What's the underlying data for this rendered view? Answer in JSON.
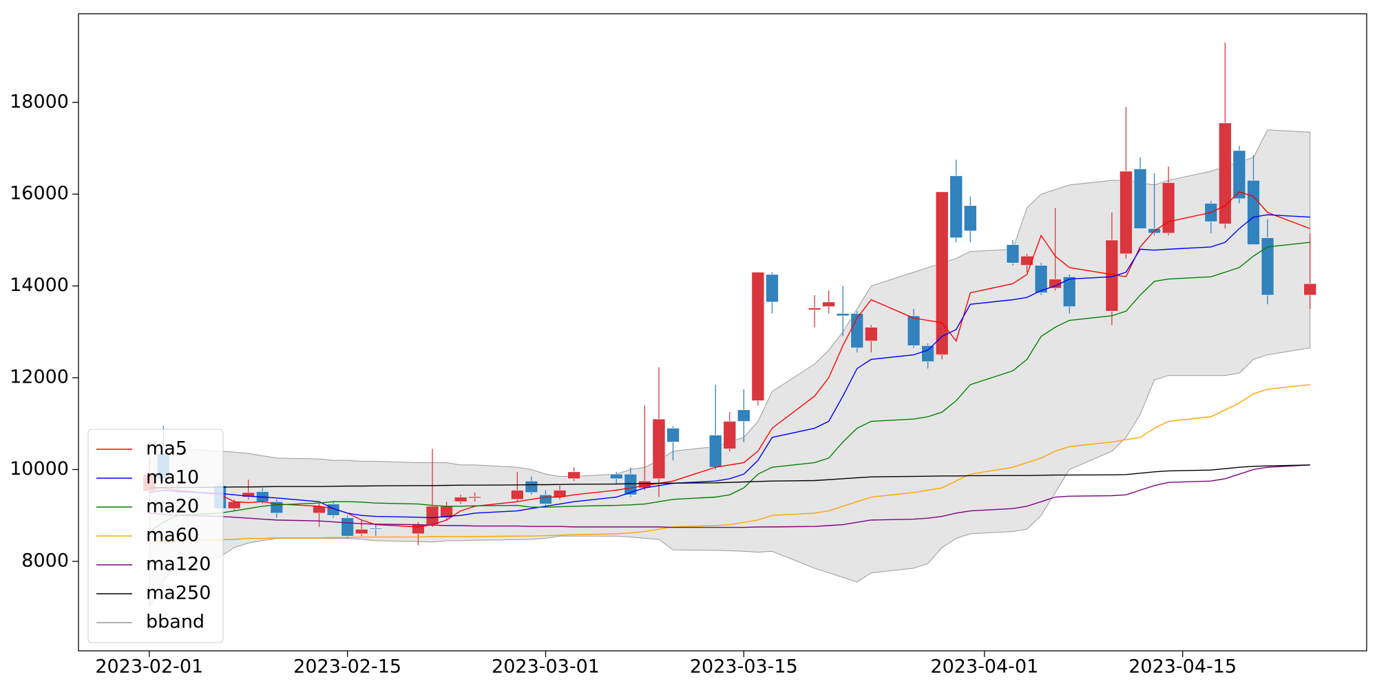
{
  "chart_data": {
    "type": "candlestick",
    "x": [
      "2023-02-01",
      "2023-02-02",
      "2023-02-03",
      "2023-02-06",
      "2023-02-07",
      "2023-02-08",
      "2023-02-09",
      "2023-02-10",
      "2023-02-13",
      "2023-02-14",
      "2023-02-15",
      "2023-02-16",
      "2023-02-17",
      "2023-02-20",
      "2023-02-21",
      "2023-02-22",
      "2023-02-23",
      "2023-02-24",
      "2023-02-27",
      "2023-02-28",
      "2023-03-01",
      "2023-03-02",
      "2023-03-03",
      "2023-03-06",
      "2023-03-07",
      "2023-03-08",
      "2023-03-09",
      "2023-03-10",
      "2023-03-13",
      "2023-03-14",
      "2023-03-15",
      "2023-03-16",
      "2023-03-17",
      "2023-03-20",
      "2023-03-21",
      "2023-03-22",
      "2023-03-23",
      "2023-03-24",
      "2023-03-27",
      "2023-03-28",
      "2023-03-29",
      "2023-03-30",
      "2023-03-31",
      "2023-04-03",
      "2023-04-04",
      "2023-04-05",
      "2023-04-06",
      "2023-04-07",
      "2023-04-10",
      "2023-04-11",
      "2023-04-12",
      "2023-04-13",
      "2023-04-14",
      "2023-04-17",
      "2023-04-18",
      "2023-04-19",
      "2023-04-20",
      "2023-04-21",
      "2023-04-24"
    ],
    "open": [
      9530,
      10350,
      9620,
      9650,
      9150,
      9400,
      9520,
      9300,
      9050,
      9250,
      8950,
      8600,
      8720,
      8600,
      8800,
      8950,
      9300,
      9380,
      9350,
      9750,
      9450,
      9400,
      9800,
      9900,
      9900,
      9600,
      9800,
      10900,
      10750,
      10450,
      11300,
      11500,
      14250,
      13480,
      13550,
      13400,
      13400,
      12800,
      13350,
      12700,
      12500,
      16400,
      15750,
      14900,
      14450,
      14450,
      13950,
      14200,
      13450,
      14700,
      16550,
      15250,
      15150,
      15800,
      15350,
      16950,
      16300,
      15050,
      13800
    ],
    "high": [
      10180,
      10950,
      9680,
      9700,
      9350,
      9780,
      9600,
      9350,
      9250,
      9300,
      9000,
      8900,
      8800,
      8850,
      10450,
      9300,
      9450,
      9500,
      9950,
      9850,
      9550,
      9650,
      10050,
      9950,
      10050,
      11400,
      12230,
      10950,
      11850,
      11250,
      11750,
      14300,
      14300,
      13800,
      13900,
      14000,
      13450,
      13150,
      13500,
      12750,
      16050,
      16750,
      15950,
      15000,
      14700,
      14500,
      15700,
      14250,
      15600,
      17900,
      16800,
      16450,
      16600,
      15850,
      19300,
      17050,
      16850,
      15450,
      15150
    ],
    "low": [
      9480,
      9700,
      9540,
      9100,
      9100,
      9350,
      9250,
      8950,
      8750,
      8950,
      8500,
      8550,
      8550,
      8350,
      8750,
      8900,
      9250,
      9300,
      9300,
      9450,
      9200,
      9350,
      9750,
      9700,
      9400,
      9550,
      9400,
      10200,
      10000,
      10400,
      10600,
      11400,
      13400,
      13100,
      13400,
      12900,
      12550,
      12550,
      12650,
      12200,
      12400,
      14950,
      14950,
      14450,
      14300,
      13800,
      13900,
      13400,
      13150,
      14600,
      15250,
      15100,
      15100,
      15150,
      15250,
      15800,
      14900,
      13600,
      13500
    ],
    "close": [
      9890,
      9800,
      9600,
      9150,
      9300,
      9500,
      9300,
      9050,
      9200,
      9000,
      8550,
      8700,
      8700,
      8800,
      9200,
      9200,
      9400,
      9410,
      9550,
      9500,
      9250,
      9550,
      9950,
      9800,
      9450,
      9750,
      11100,
      10600,
      10050,
      11050,
      11050,
      14300,
      13650,
      13520,
      13650,
      13350,
      12650,
      13100,
      12700,
      12350,
      16050,
      15050,
      15200,
      14500,
      14650,
      13850,
      14150,
      13550,
      15000,
      16500,
      15250,
      15150,
      16250,
      15400,
      17550,
      15900,
      14900,
      13800,
      14050
    ],
    "up_color": "#d9363e",
    "down_color": "#3182bd",
    "series": [
      {
        "name": "ma5",
        "color": "red",
        "values": [
          9580,
          9600,
          9550,
          9450,
          9300,
          9280,
          9300,
          9250,
          9200,
          9150,
          9050,
          8900,
          8800,
          8750,
          8800,
          8900,
          9100,
          9200,
          9300,
          9350,
          9400,
          9400,
          9450,
          9550,
          9600,
          9650,
          9700,
          9750,
          10050,
          10100,
          10150,
          10400,
          10900,
          11600,
          12000,
          12700,
          13300,
          13700,
          13300,
          13250,
          13200,
          12800,
          13850,
          14050,
          14250,
          15100,
          14650,
          14400,
          14250,
          14200,
          14850,
          15200,
          15400,
          15600,
          15750,
          16050,
          15950,
          15600,
          15250
        ]
      },
      {
        "name": "ma10",
        "color": "blue",
        "values": [
          9500,
          9550,
          9520,
          9480,
          9450,
          9420,
          9400,
          9380,
          9300,
          9150,
          9050,
          9000,
          8980,
          8960,
          8950,
          8980,
          9000,
          9050,
          9100,
          9150,
          9200,
          9250,
          9300,
          9400,
          9500,
          9600,
          9650,
          9700,
          9750,
          9800,
          9900,
          10200,
          10700,
          10900,
          11050,
          11600,
          12200,
          12400,
          12500,
          12600,
          12900,
          13050,
          13600,
          13700,
          13750,
          13900,
          14000,
          14150,
          14200,
          14300,
          14800,
          14780,
          14800,
          14850,
          14950,
          15250,
          15500,
          15550,
          15500
        ]
      },
      {
        "name": "ma20",
        "color": "green",
        "values": [
          8650,
          8850,
          9000,
          9050,
          9100,
          9150,
          9200,
          9230,
          9270,
          9300,
          9300,
          9290,
          9270,
          9250,
          9220,
          9200,
          9200,
          9210,
          9220,
          9180,
          9180,
          9190,
          9200,
          9220,
          9230,
          9250,
          9300,
          9350,
          9400,
          9450,
          9600,
          9900,
          10050,
          10150,
          10250,
          10600,
          10900,
          11050,
          11100,
          11150,
          11250,
          11500,
          11850,
          12150,
          12400,
          12900,
          13100,
          13250,
          13350,
          13450,
          13800,
          14100,
          14150,
          14200,
          14300,
          14400,
          14650,
          14850,
          14950
        ]
      },
      {
        "name": "ma60",
        "color": "orange",
        "values": [
          8400,
          8430,
          8450,
          8470,
          8480,
          8500,
          8500,
          8510,
          8510,
          8520,
          8520,
          8530,
          8530,
          8530,
          8540,
          8540,
          8540,
          8540,
          8550,
          8550,
          8560,
          8570,
          8580,
          8600,
          8620,
          8650,
          8700,
          8750,
          8780,
          8800,
          8850,
          8900,
          9000,
          9050,
          9100,
          9200,
          9300,
          9400,
          9500,
          9550,
          9600,
          9750,
          9900,
          10050,
          10150,
          10250,
          10400,
          10500,
          10600,
          10650,
          10700,
          10900,
          11050,
          11150,
          11300,
          11450,
          11650,
          11750,
          11850
        ]
      },
      {
        "name": "ma120",
        "color": "purple",
        "values": [
          9050,
          9020,
          9000,
          8980,
          8960,
          8940,
          8920,
          8900,
          8880,
          8860,
          8840,
          8820,
          8810,
          8800,
          8790,
          8780,
          8780,
          8770,
          8770,
          8760,
          8760,
          8760,
          8750,
          8750,
          8750,
          8750,
          8750,
          8740,
          8740,
          8740,
          8740,
          8750,
          8750,
          8760,
          8780,
          8800,
          8850,
          8900,
          8920,
          8940,
          8980,
          9050,
          9100,
          9150,
          9200,
          9300,
          9400,
          9420,
          9430,
          9450,
          9550,
          9650,
          9720,
          9750,
          9800,
          9900,
          10000,
          10050,
          10100
        ]
      },
      {
        "name": "ma250",
        "color": "black",
        "values": [
          9600,
          9610,
          9610,
          9615,
          9620,
          9620,
          9625,
          9630,
          9630,
          9635,
          9640,
          9640,
          9645,
          9650,
          9650,
          9655,
          9660,
          9660,
          9665,
          9670,
          9670,
          9675,
          9680,
          9685,
          9690,
          9695,
          9700,
          9705,
          9710,
          9720,
          9730,
          9740,
          9750,
          9760,
          9780,
          9800,
          9820,
          9840,
          9850,
          9855,
          9860,
          9860,
          9865,
          9870,
          9870,
          9875,
          9880,
          9880,
          9885,
          9890,
          9920,
          9950,
          9970,
          9990,
          10020,
          10050,
          10070,
          10080,
          10100
        ]
      }
    ],
    "band": {
      "name": "bband",
      "color": "#999999",
      "fill": "#e5e5e5",
      "upper": [
        10600,
        10550,
        10450,
        10400,
        10380,
        10350,
        10300,
        10250,
        10230,
        10200,
        10200,
        10180,
        10180,
        10150,
        10150,
        10150,
        10100,
        10100,
        10050,
        10000,
        9900,
        9850,
        9850,
        9900,
        10000,
        10050,
        10200,
        10400,
        10500,
        10600,
        10700,
        11050,
        11700,
        12300,
        12600,
        13000,
        13500,
        14000,
        14300,
        14400,
        14500,
        14600,
        14750,
        14800,
        15700,
        16000,
        16100,
        16200,
        16300,
        16300,
        16250,
        16200,
        16300,
        16500,
        16600,
        16700,
        16800,
        17400,
        17350
      ],
      "lower": [
        7000,
        7600,
        7900,
        8100,
        8300,
        8400,
        8450,
        8500,
        8500,
        8500,
        8500,
        8480,
        8450,
        8430,
        8420,
        8450,
        8450,
        8460,
        8470,
        8480,
        8500,
        8550,
        8550,
        8550,
        8530,
        8500,
        8480,
        8250,
        8240,
        8230,
        8220,
        8200,
        8220,
        7850,
        7750,
        7650,
        7550,
        7750,
        7850,
        7950,
        8300,
        8500,
        8600,
        8650,
        8700,
        9000,
        9500,
        10000,
        10400,
        10700,
        11200,
        11950,
        12050,
        12050,
        12050,
        12100,
        12400,
        12500,
        12650
      ]
    },
    "xlim": [
      "2023-01-27",
      "2023-04-28"
    ],
    "xticks": [
      "2023-02-01",
      "2023-02-15",
      "2023-03-01",
      "2023-03-15",
      "2023-04-01",
      "2023-04-15"
    ],
    "ylim": [
      6050,
      19930
    ],
    "yticks": [
      8000,
      10000,
      12000,
      14000,
      16000,
      18000
    ],
    "legend": "lower left"
  }
}
